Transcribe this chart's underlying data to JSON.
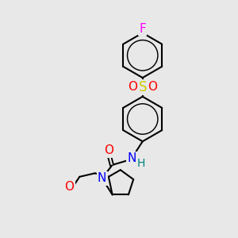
{
  "background_color": "#e8e8e8",
  "bond_color": "#000000",
  "bond_width": 1.5,
  "atom_colors": {
    "F": "#ff00ff",
    "O": "#ff0000",
    "N": "#0000ff",
    "S": "#cccc00",
    "H": "#008080",
    "C": "#000000"
  },
  "font_size": 10,
  "fig_width": 3.0,
  "fig_height": 3.0,
  "dpi": 100
}
